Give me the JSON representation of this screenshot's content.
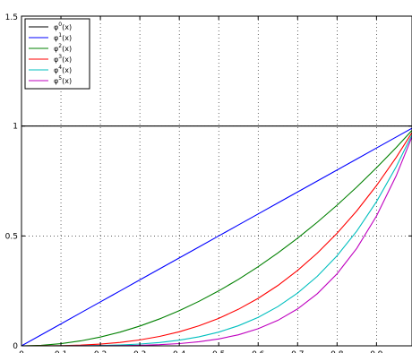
{
  "chart_data": {
    "type": "line",
    "title": "",
    "xlabel": "",
    "ylabel": "",
    "xlim": [
      0,
      0.99
    ],
    "ylim": [
      0,
      1.5
    ],
    "grid": true,
    "legend_position": "top-left",
    "x_ticks": [
      0,
      0.1,
      0.2,
      0.3,
      0.4,
      0.5,
      0.6,
      0.7,
      0.8,
      0.9
    ],
    "x_tick_labels": [
      "0",
      "0.1",
      "0.2",
      "0.3",
      "0.4",
      "0.5",
      "0.6",
      "0.7",
      "0.8",
      "0.9"
    ],
    "y_ticks": [
      0,
      0.5,
      1,
      1.5
    ],
    "y_tick_labels": [
      "0",
      "0.5",
      "1",
      "1.5"
    ],
    "x": [
      0,
      0.05,
      0.1,
      0.15,
      0.2,
      0.25,
      0.3,
      0.35,
      0.4,
      0.45,
      0.5,
      0.55,
      0.6,
      0.65,
      0.7,
      0.75,
      0.8,
      0.85,
      0.9,
      0.95,
      0.99
    ],
    "series": [
      {
        "name": "φ⁰(x)",
        "base": "φ",
        "sup": "0",
        "tail": "(x)",
        "color": "#000000",
        "values": [
          1,
          1,
          1,
          1,
          1,
          1,
          1,
          1,
          1,
          1,
          1,
          1,
          1,
          1,
          1,
          1,
          1,
          1,
          1,
          1,
          1
        ]
      },
      {
        "name": "φ¹(x)",
        "base": "φ",
        "sup": "1",
        "tail": "(x)",
        "color": "#0000ff",
        "values": [
          0,
          0.05,
          0.1,
          0.15,
          0.2,
          0.25,
          0.3,
          0.35,
          0.4,
          0.45,
          0.5,
          0.55,
          0.6,
          0.65,
          0.7,
          0.75,
          0.8,
          0.85,
          0.9,
          0.95,
          0.99
        ]
      },
      {
        "name": "φ²(x)",
        "base": "φ",
        "sup": "2",
        "tail": "(x)",
        "color": "#008000",
        "values": [
          0,
          0.0025,
          0.01,
          0.0225,
          0.04,
          0.0625,
          0.09,
          0.1225,
          0.16,
          0.2025,
          0.25,
          0.3025,
          0.36,
          0.4225,
          0.49,
          0.5625,
          0.64,
          0.7225,
          0.81,
          0.9025,
          0.9801
        ]
      },
      {
        "name": "φ³(x)",
        "base": "φ",
        "sup": "3",
        "tail": "(x)",
        "color": "#ff0000",
        "values": [
          0,
          0.0001,
          0.001,
          0.0034,
          0.008,
          0.0156,
          0.027,
          0.0429,
          0.064,
          0.0911,
          0.125,
          0.1664,
          0.216,
          0.2746,
          0.343,
          0.4219,
          0.512,
          0.6141,
          0.729,
          0.8574,
          0.9703
        ]
      },
      {
        "name": "φ⁴(x)",
        "base": "φ",
        "sup": "4",
        "tail": "(x)",
        "color": "#00bfbf",
        "values": [
          0,
          0,
          0.0001,
          0.0005,
          0.0016,
          0.0039,
          0.0081,
          0.015,
          0.0256,
          0.041,
          0.0625,
          0.0915,
          0.1296,
          0.1785,
          0.2401,
          0.3164,
          0.4096,
          0.522,
          0.6561,
          0.8145,
          0.9606
        ]
      },
      {
        "name": "φ⁵(x)",
        "base": "φ",
        "sup": "5",
        "tail": "(x)",
        "color": "#bf00bf",
        "values": [
          0,
          0,
          0,
          0.0001,
          0.0003,
          0.001,
          0.0024,
          0.0053,
          0.0102,
          0.0185,
          0.0313,
          0.0503,
          0.0778,
          0.116,
          0.1681,
          0.2373,
          0.3277,
          0.4437,
          0.5905,
          0.7738,
          0.951
        ]
      }
    ]
  }
}
